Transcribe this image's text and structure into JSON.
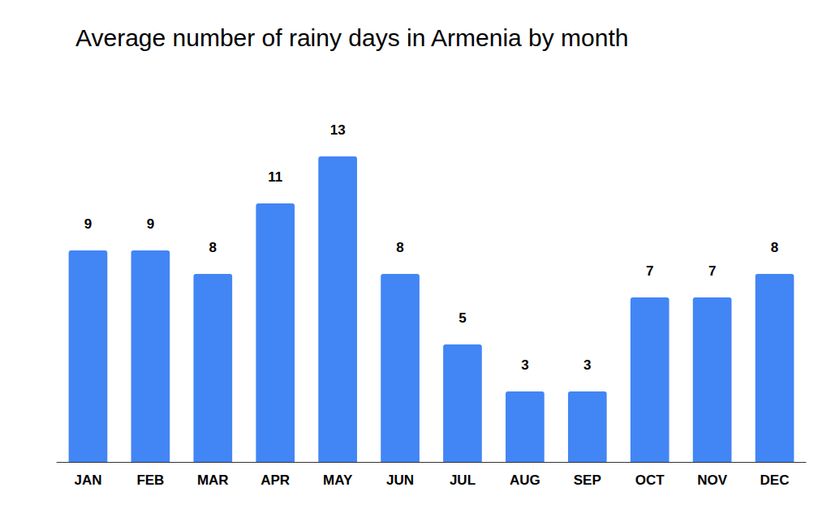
{
  "chart_data": {
    "type": "bar",
    "title": "Average number of rainy days in Armenia by month",
    "categories": [
      "JAN",
      "FEB",
      "MAR",
      "APR",
      "MAY",
      "JUN",
      "JUL",
      "AUG",
      "SEP",
      "OCT",
      "NOV",
      "DEC"
    ],
    "values": [
      9,
      9,
      8,
      11,
      13,
      8,
      5,
      3,
      3,
      7,
      7,
      8
    ],
    "color": "#4285f4",
    "ylim": [
      0,
      14
    ],
    "grid": false,
    "data_labels": true,
    "tick_labels": "x"
  }
}
